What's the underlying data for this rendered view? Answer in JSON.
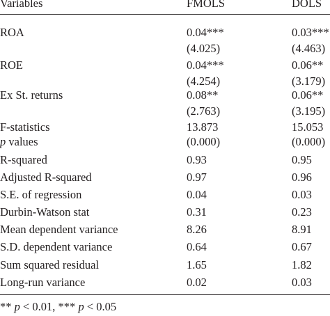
{
  "table": {
    "headers": {
      "variables": "Variables",
      "fmols": "FMOLS",
      "dols": "DOLS"
    },
    "rows": [
      {
        "label": "ROA",
        "fmols": "0.04***",
        "fmols_sub": "(4.025)",
        "dols": "0.03***",
        "dols_sub": "(4.463)"
      },
      {
        "label": "ROE",
        "fmols": "0.04***",
        "fmols_sub": "(4.254)",
        "dols": "0.06**",
        "dols_sub": "(3.179)"
      },
      {
        "label": "Ex St. returns",
        "fmols": "0.08**",
        "fmols_sub": "(2.763)",
        "dols": "0.06**",
        "dols_sub": "(3.195)"
      },
      {
        "label": "F-statistics",
        "fmols": "13.873",
        "dols": "15.053"
      },
      {
        "label_italic": "p",
        "label_rest": " values",
        "fmols": "(0.000)",
        "dols": "(0.000)"
      },
      {
        "label": "R-squared",
        "fmols": "0.93",
        "dols": "0.95"
      },
      {
        "label": "Adjusted R-squared",
        "fmols": "0.97",
        "dols": "0.96"
      },
      {
        "label": "S.E. of regression",
        "fmols": "0.04",
        "dols": "0.03"
      },
      {
        "label": "Durbin-Watson stat",
        "fmols": "0.31",
        "dols": "0.23"
      },
      {
        "label": "Mean dependent variance",
        "fmols": "8.26",
        "dols": "8.91"
      },
      {
        "label": "S.D. dependent variance",
        "fmols": "0.64",
        "dols": "0.67"
      },
      {
        "label": "Sum squared residual",
        "fmols": "1.65",
        "dols": "1.82"
      },
      {
        "label": "Long-run variance",
        "fmols": "0.02",
        "dols": "0.03"
      }
    ]
  },
  "footnote": {
    "part1": "** ",
    "p1": "p",
    "part2": " < 0.01, *** ",
    "p2": "p",
    "part3": " < 0.05"
  }
}
